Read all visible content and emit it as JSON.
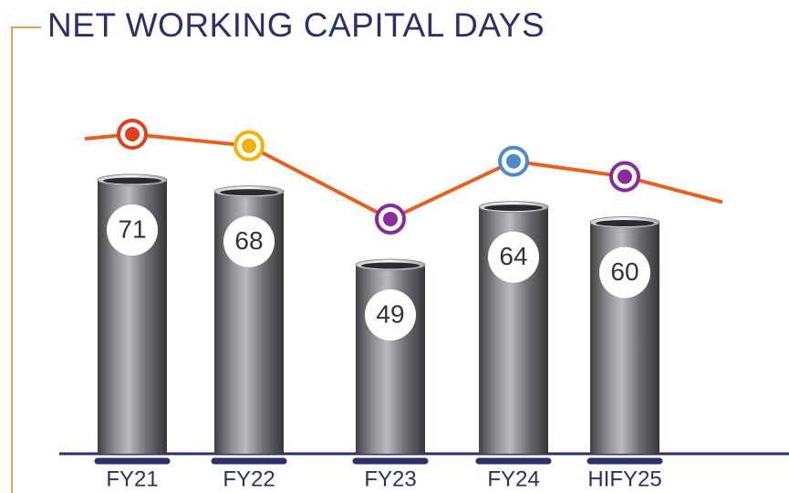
{
  "chart_data": {
    "type": "bar",
    "title": "NET WORKING CAPITAL DAYS",
    "categories": [
      "FY21",
      "FY22",
      "FY23",
      "FY24",
      "HIFY25"
    ],
    "values": [
      71,
      68,
      49,
      64,
      60
    ],
    "color": "#6b6d70",
    "line_color": "#e8601c",
    "marker_colors": [
      "#e0401c",
      "#f2b400",
      "#8a2aa0",
      "#4f8ac9",
      "#8a2aa0"
    ]
  }
}
